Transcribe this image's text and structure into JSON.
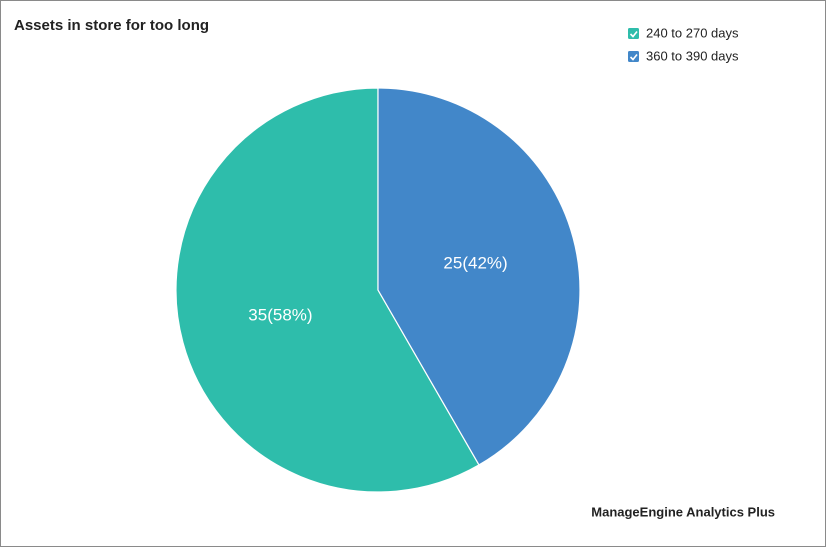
{
  "chart_data": {
    "type": "pie",
    "title": "Assets in store for too long",
    "categories": [
      "240 to 270 days",
      "360 to 390 days"
    ],
    "values": [
      35,
      25
    ],
    "value_labels": [
      "35(58%)",
      "25(42%)"
    ],
    "colors": [
      "#2ebdab",
      "#4287c9"
    ],
    "legend": "top-right"
  },
  "footer": "ManageEngine Analytics Plus"
}
